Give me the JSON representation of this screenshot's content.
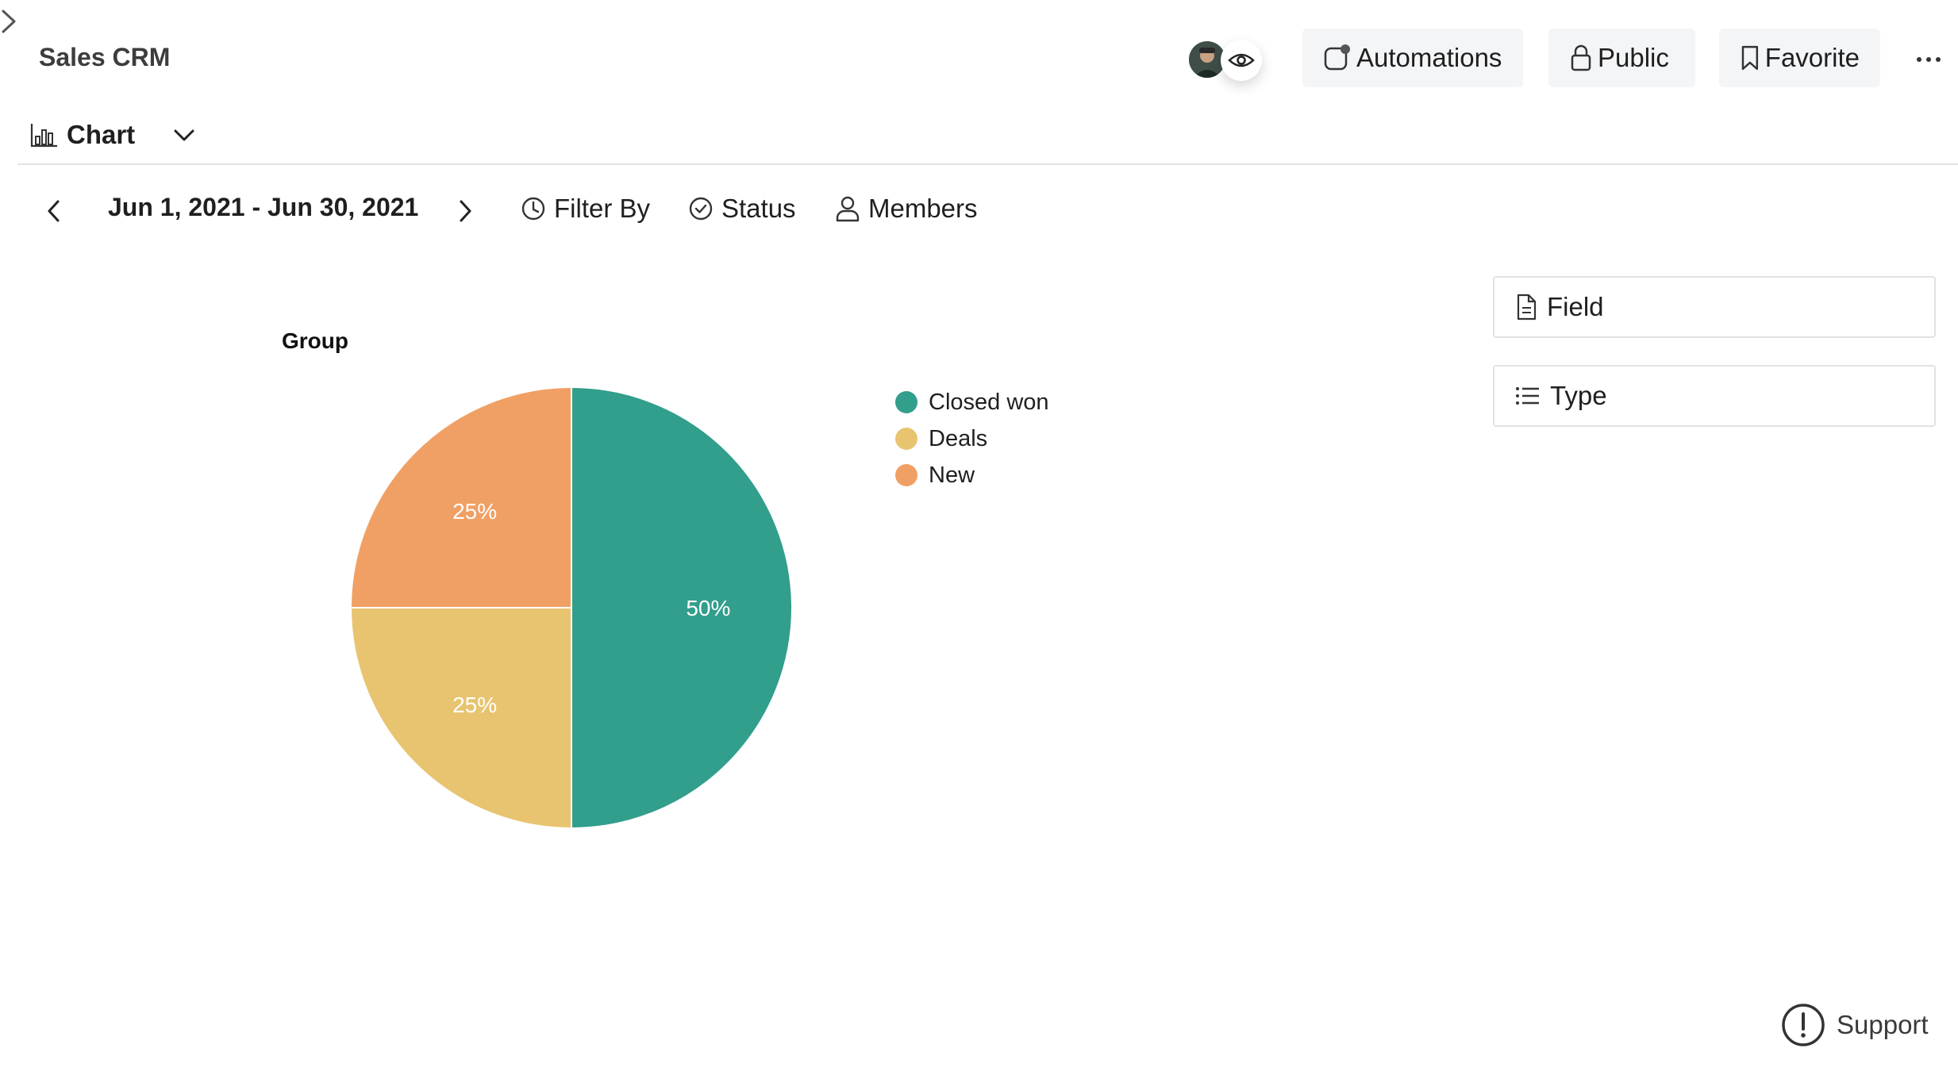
{
  "header": {
    "title": "Sales CRM",
    "automations_label": "Automations",
    "public_label": "Public",
    "favorite_label": "Favorite"
  },
  "view": {
    "label": "Chart"
  },
  "toolbar": {
    "date_range": "Jun 1, 2021 - Jun 30, 2021",
    "filter_by_label": "Filter By",
    "status_label": "Status",
    "members_label": "Members"
  },
  "side_panel": {
    "field_label": "Field",
    "type_label": "Type"
  },
  "support_label": "Support",
  "colors": {
    "closed_won": "#329e8c",
    "deals": "#e8c470",
    "new": "#f0a064"
  },
  "chart_data": {
    "type": "pie",
    "title": "Group",
    "categories": [
      "Closed won",
      "Deals",
      "New"
    ],
    "values": [
      50,
      25,
      25
    ],
    "labels": [
      "50%",
      "25%",
      "25%"
    ],
    "legend_position": "right"
  }
}
